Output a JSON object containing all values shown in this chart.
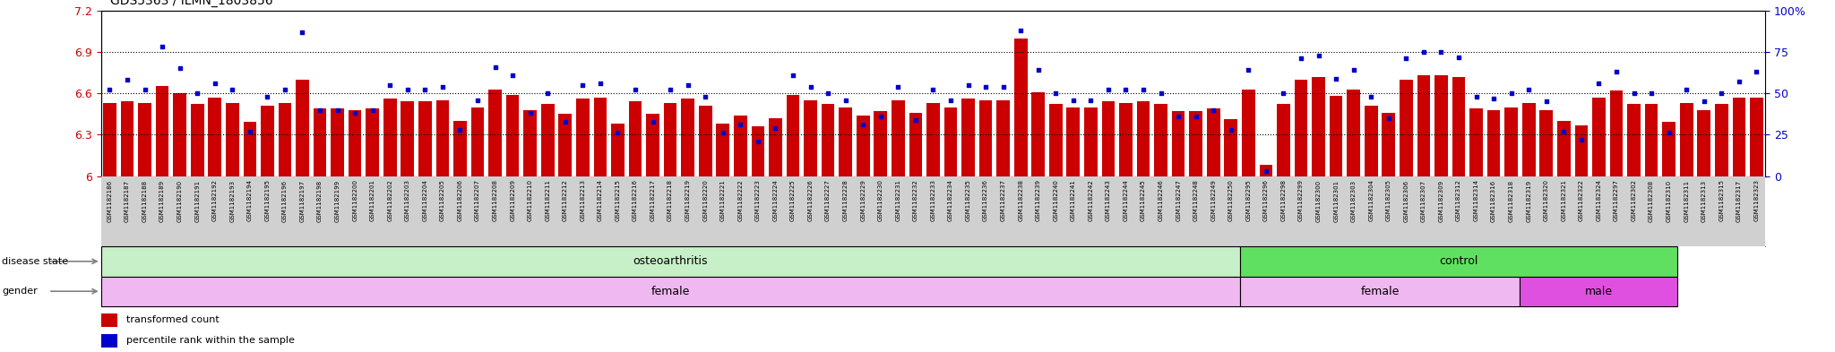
{
  "title": "GDS5363 / ILMN_1803856",
  "ylim_left": [
    6.0,
    7.2
  ],
  "ylim_right": [
    0,
    100
  ],
  "yticks_left": [
    6.0,
    6.3,
    6.6,
    6.9,
    7.2
  ],
  "ytick_labels_left": [
    "6",
    "6.3",
    "6.6",
    "6.9",
    "7.2"
  ],
  "yticks_right": [
    0,
    25,
    50,
    75,
    100
  ],
  "ytick_labels_right": [
    "0",
    "25",
    "50",
    "75",
    "100%"
  ],
  "bar_color": "#cc0000",
  "dot_color": "#0000cc",
  "sample_ids": [
    "GSM1182186",
    "GSM1182187",
    "GSM1182188",
    "GSM1182189",
    "GSM1182190",
    "GSM1182191",
    "GSM1182192",
    "GSM1182193",
    "GSM1182194",
    "GSM1182195",
    "GSM1182196",
    "GSM1182197",
    "GSM1182198",
    "GSM1182199",
    "GSM1182200",
    "GSM1182201",
    "GSM1182202",
    "GSM1182203",
    "GSM1182204",
    "GSM1182205",
    "GSM1182206",
    "GSM1182207",
    "GSM1182208",
    "GSM1182209",
    "GSM1182210",
    "GSM1182211",
    "GSM1182212",
    "GSM1182213",
    "GSM1182214",
    "GSM1182215",
    "GSM1182216",
    "GSM1182217",
    "GSM1182218",
    "GSM1182219",
    "GSM1182220",
    "GSM1182221",
    "GSM1182222",
    "GSM1182223",
    "GSM1182224",
    "GSM1182225",
    "GSM1182226",
    "GSM1182227",
    "GSM1182228",
    "GSM1182229",
    "GSM1182230",
    "GSM1182231",
    "GSM1182232",
    "GSM1182233",
    "GSM1182234",
    "GSM1182235",
    "GSM1182236",
    "GSM1182237",
    "GSM1182238",
    "GSM1182239",
    "GSM1182240",
    "GSM1182241",
    "GSM1182242",
    "GSM1182243",
    "GSM1182244",
    "GSM1182245",
    "GSM1182246",
    "GSM1182247",
    "GSM1182248",
    "GSM1182249",
    "GSM1182250",
    "GSM1182295",
    "GSM1182296",
    "GSM1182298",
    "GSM1182299",
    "GSM1182300",
    "GSM1182301",
    "GSM1182303",
    "GSM1182304",
    "GSM1182305",
    "GSM1182306",
    "GSM1182307",
    "GSM1182309",
    "GSM1182312",
    "GSM1182314",
    "GSM1182316",
    "GSM1182318",
    "GSM1182319",
    "GSM1182320",
    "GSM1182321",
    "GSM1182322",
    "GSM1182324",
    "GSM1182297",
    "GSM1182302",
    "GSM1182308",
    "GSM1182310",
    "GSM1182311",
    "GSM1182313",
    "GSM1182315",
    "GSM1182317",
    "GSM1182323"
  ],
  "bar_heights": [
    6.53,
    6.54,
    6.53,
    6.65,
    6.6,
    6.52,
    6.57,
    6.53,
    6.39,
    6.51,
    6.53,
    6.7,
    6.49,
    6.49,
    6.48,
    6.49,
    6.56,
    6.54,
    6.54,
    6.55,
    6.4,
    6.5,
    6.63,
    6.59,
    6.48,
    6.52,
    6.45,
    6.56,
    6.57,
    6.38,
    6.54,
    6.45,
    6.53,
    6.56,
    6.51,
    6.38,
    6.44,
    6.36,
    6.42,
    6.59,
    6.55,
    6.52,
    6.5,
    6.44,
    6.47,
    6.55,
    6.46,
    6.53,
    6.5,
    6.56,
    6.55,
    6.55,
    7.0,
    6.61,
    6.52,
    6.5,
    6.5,
    6.54,
    6.53,
    6.54,
    6.52,
    6.47,
    6.47,
    6.49,
    6.41,
    6.63,
    6.08,
    6.52,
    6.7,
    6.72,
    6.58,
    6.63,
    6.51,
    6.46,
    6.7,
    6.73,
    6.73,
    6.72,
    6.49,
    6.48,
    6.5,
    6.53,
    6.48,
    6.4,
    6.37,
    6.57,
    6.62,
    6.52,
    6.52,
    6.39,
    6.53,
    6.48,
    6.52,
    6.57,
    6.57
  ],
  "percentile_ranks": [
    52,
    58,
    52,
    78,
    65,
    50,
    56,
    52,
    27,
    48,
    52,
    87,
    40,
    40,
    38,
    40,
    55,
    52,
    52,
    54,
    28,
    46,
    66,
    61,
    38,
    50,
    33,
    55,
    56,
    26,
    52,
    33,
    52,
    55,
    48,
    26,
    31,
    21,
    29,
    61,
    54,
    50,
    46,
    31,
    36,
    54,
    34,
    52,
    46,
    55,
    54,
    54,
    88,
    64,
    50,
    46,
    46,
    52,
    52,
    52,
    50,
    36,
    36,
    40,
    28,
    64,
    3,
    50,
    71,
    73,
    59,
    64,
    48,
    35,
    71,
    75,
    75,
    72,
    48,
    47,
    50,
    52,
    45,
    27,
    22,
    56,
    63,
    50,
    50,
    26,
    52,
    45,
    50,
    57,
    63
  ],
  "n_osteoarthritis_female": 65,
  "n_control_female": 16,
  "n_control_male": 9,
  "disease_state_oa_color": "#c8f0c8",
  "disease_state_control_color": "#60e060",
  "gender_female_color": "#f0b8f0",
  "gender_male_color": "#e050e0",
  "xtick_bg_color": "#d0d0d0"
}
